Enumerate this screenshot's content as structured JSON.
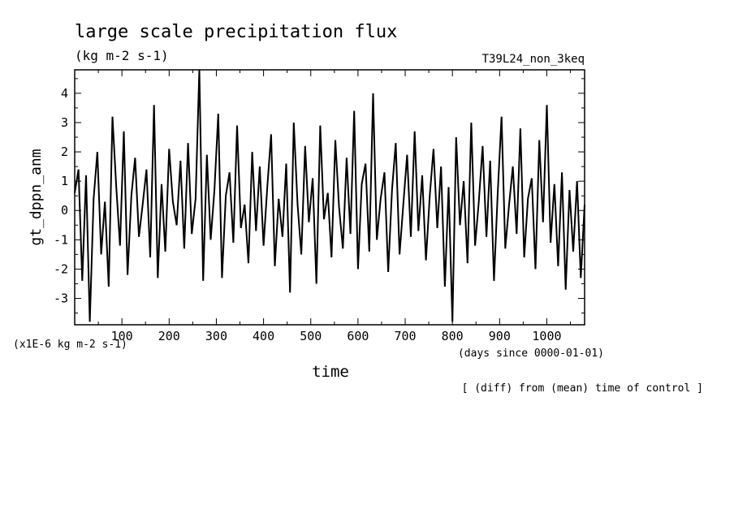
{
  "chart_data": {
    "type": "line",
    "title": "large scale precipitation flux",
    "units": "(kg m-2 s-1)",
    "experiment": "T39L24_non_3keq",
    "ylabel": "gt_dppn_anm",
    "xlabel": "time",
    "x_units": "(days since 0000-01-01)",
    "y_scale_note": "(x1E-6 kg m-2 s-1)",
    "footnote": "[ (diff) from (mean) time of control ]",
    "xlim": [
      0,
      1080
    ],
    "ylim": [
      -3.9,
      4.8
    ],
    "xticks": [
      100,
      200,
      300,
      400,
      500,
      600,
      700,
      800,
      900,
      1000
    ],
    "yticks": [
      -3,
      -2,
      -1,
      0,
      1,
      2,
      3,
      4
    ],
    "grid": false,
    "legend": "none",
    "line_color": "#000000",
    "series": [
      {
        "x": [
          0,
          8,
          16,
          24,
          32,
          40,
          48,
          56,
          64,
          72,
          80,
          88,
          96,
          104,
          112,
          120,
          128,
          136,
          144,
          152,
          160,
          168,
          176,
          184,
          192,
          200,
          208,
          216,
          224,
          232,
          240,
          248,
          256,
          264,
          272,
          280,
          288,
          296,
          304,
          312,
          320,
          328,
          336,
          344,
          352,
          360,
          368,
          376,
          384,
          392,
          400,
          408,
          416,
          424,
          432,
          440,
          448,
          456,
          464,
          472,
          480,
          488,
          496,
          504,
          512,
          520,
          528,
          536,
          544,
          552,
          560,
          568,
          576,
          584,
          592,
          600,
          608,
          616,
          624,
          632,
          640,
          648,
          656,
          664,
          672,
          680,
          688,
          696,
          704,
          712,
          720,
          728,
          736,
          744,
          752,
          760,
          768,
          776,
          784,
          792,
          800,
          808,
          816,
          824,
          832,
          840,
          848,
          856,
          864,
          872,
          880,
          888,
          896,
          904,
          912,
          920,
          928,
          936,
          944,
          952,
          960,
          968,
          976,
          984,
          992,
          1000,
          1008,
          1016,
          1024,
          1032,
          1040,
          1048,
          1056,
          1064,
          1072,
          1080
        ],
        "y": [
          0.6,
          1.4,
          -2.4,
          1.2,
          -3.8,
          0.4,
          2.0,
          -1.5,
          0.3,
          -2.6,
          3.2,
          0.8,
          -1.2,
          2.7,
          -2.2,
          0.5,
          1.8,
          -0.9,
          0.2,
          1.4,
          -1.6,
          3.6,
          -2.3,
          0.9,
          -1.4,
          2.1,
          0.3,
          -0.5,
          1.7,
          -1.3,
          2.3,
          -0.8,
          0.4,
          4.8,
          -2.4,
          1.9,
          -1.0,
          0.7,
          3.3,
          -2.3,
          0.5,
          1.3,
          -1.1,
          2.9,
          -0.6,
          0.2,
          -1.8,
          2.0,
          -0.7,
          1.5,
          -1.2,
          0.8,
          2.6,
          -1.9,
          0.4,
          -0.9,
          1.6,
          -2.8,
          3.0,
          0.2,
          -1.5,
          2.2,
          -0.4,
          1.1,
          -2.5,
          2.9,
          -0.3,
          0.6,
          -1.6,
          2.4,
          0.1,
          -1.3,
          1.8,
          -0.8,
          3.4,
          -2.0,
          0.9,
          1.6,
          -1.4,
          4.0,
          -1.0,
          0.4,
          1.3,
          -2.1,
          0.7,
          2.3,
          -1.5,
          0.2,
          1.9,
          -0.9,
          2.7,
          -0.7,
          1.2,
          -1.7,
          0.5,
          2.1,
          -0.6,
          1.5,
          -2.6,
          0.8,
          -3.8,
          2.5,
          -0.5,
          1.0,
          -1.8,
          3.0,
          -1.2,
          0.3,
          2.2,
          -0.9,
          1.7,
          -2.4,
          0.6,
          3.2,
          -1.3,
          0.2,
          1.5,
          -0.8,
          2.8,
          -1.6,
          0.4,
          1.1,
          -2.0,
          2.4,
          -0.4,
          3.6,
          -1.1,
          0.9,
          -1.9,
          1.3,
          -2.7,
          0.7,
          -1.4,
          1.0,
          -2.3,
          0.2
        ]
      }
    ]
  }
}
